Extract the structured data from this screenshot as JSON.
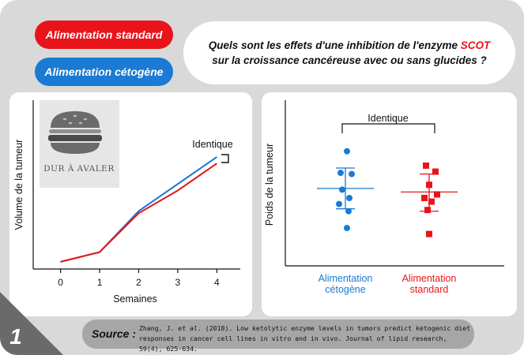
{
  "header": {
    "pill_standard": "Alimentation standard",
    "pill_keto": "Alimentation cétogène",
    "question_line1_pre": "Quels sont les effets d'une inhibition de l'enzyme ",
    "question_highlight": "SCOT",
    "question_line2": "sur la croissance cancéreuse avec ou sans glucides ?"
  },
  "colors": {
    "standard": "#e8141a",
    "keto": "#1a7ad4",
    "frame": "#d9d9d9"
  },
  "logo": {
    "text": "DUR À AVALER",
    "icon": "burger-icon"
  },
  "chart_data": [
    {
      "type": "line",
      "xlabel": "Semaines",
      "ylabel": "Volume de la tumeur",
      "categories": [
        "0",
        "1",
        "2",
        "3",
        "4"
      ],
      "x": [
        0,
        1,
        2,
        3,
        4
      ],
      "xlim": [
        -0.7,
        4.6
      ],
      "ylim": [
        0,
        10
      ],
      "series": [
        {
          "key": "keto",
          "values": [
            0.3,
            1.2,
            5.0,
            7.5,
            10.0
          ]
        },
        {
          "key": "standard",
          "values": [
            0.3,
            1.2,
            4.8,
            6.9,
            9.4
          ]
        }
      ],
      "annotation": "Identique"
    },
    {
      "type": "scatter",
      "ylabel": "Poids de la tumeur",
      "categories": [
        "Alimentation\ncétogène",
        "Alimentation\nstandard"
      ],
      "ylim": [
        0,
        10
      ],
      "series": [
        {
          "key": "keto",
          "points": [
            8.9,
            7.1,
            7.0,
            5.7,
            5.0,
            4.5,
            3.9,
            2.5
          ],
          "mean": 5.8,
          "upper": 7.5,
          "lower": 4.1
        },
        {
          "key": "standard",
          "points": [
            7.7,
            7.2,
            6.1,
            5.3,
            5.0,
            4.7,
            4.0,
            2.0
          ],
          "mean": 5.5,
          "upper": 7.0,
          "lower": 3.9
        }
      ],
      "annotation": "Identique"
    }
  ],
  "source": {
    "label": "Source :",
    "ref_pre": "Zhang, J. ",
    "ref_italic": "et al",
    "ref_post": ". (2018). Low ketolytic enzyme levels in tumors predict ketogenic diet",
    "ref_line2": "responses in cancer cell lines in vitro and in vivo. Journal of lipid research, 59(4), 625-634."
  },
  "page_number": "1"
}
